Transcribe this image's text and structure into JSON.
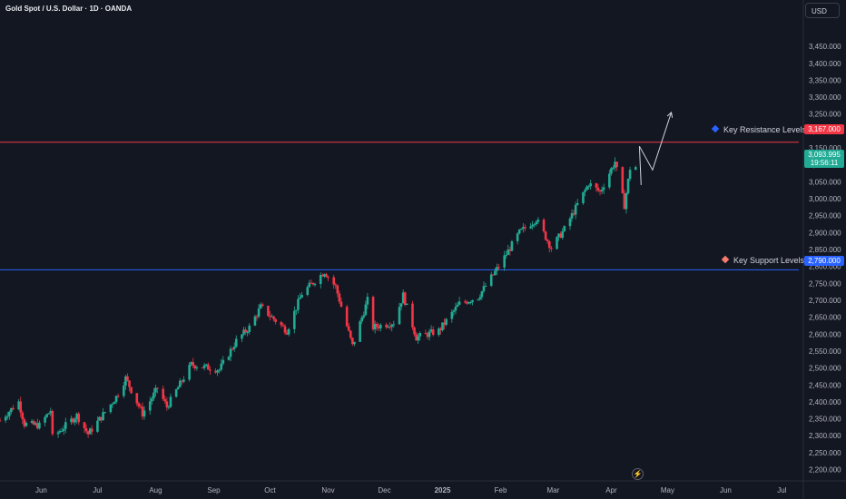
{
  "header": {
    "title": "Gold Spot / U.S. Dollar · 1D · OANDA",
    "currency": "USD"
  },
  "levels": {
    "resistance": {
      "label": "Key Resistance Levels:",
      "price": 3167,
      "price_label": "3,167.000",
      "color": "#f23645",
      "marker_color": "#2962ff"
    },
    "support": {
      "label": "Key Support Levels:",
      "price": 2790,
      "price_label": "2,790.000",
      "color": "#2962ff",
      "marker_color": "#f77c6b"
    }
  },
  "last_price": {
    "price": 3093.995,
    "label": "3,093.995",
    "countdown": "19:56:11",
    "color": "#22ab94"
  },
  "events": {
    "bolt_icon": "lightning-icon"
  },
  "chart_data": {
    "type": "candlestick",
    "title": "Gold Spot / U.S. Dollar · 1D · OANDA",
    "up_color": "#22ab94",
    "down_color": "#f23645",
    "y_axis": {
      "range": [
        2180,
        3520
      ],
      "ticks": [
        3450,
        3400,
        3350,
        3300,
        3250,
        3200,
        3150,
        3100,
        3050,
        3000,
        2950,
        2900,
        2850,
        2800,
        2750,
        2700,
        2650,
        2600,
        2550,
        2500,
        2450,
        2400,
        2350,
        2300,
        2250,
        2200
      ],
      "tick_labels": [
        "3,450.000",
        "3,400.000",
        "3,350.000",
        "3,300.000",
        "3,250.000",
        "3,200.000",
        "3,150.000",
        "3,100.000",
        "3,050.000",
        "3,000.000",
        "2,950.000",
        "2,900.000",
        "2,850.000",
        "2,800.000",
        "2,750.000",
        "2,700.000",
        "2,650.000",
        "2,600.000",
        "2,550.000",
        "2,500.000",
        "2,450.000",
        "2,400.000",
        "2,350.000",
        "2,300.000",
        "2,250.000",
        "2,200.000"
      ]
    },
    "x_axis": {
      "range": [
        "2024-05-10",
        "2025-07-10"
      ],
      "ticks": [
        {
          "date": "2024-06-01",
          "label": "Jun",
          "bold": false
        },
        {
          "date": "2024-07-01",
          "label": "Jul",
          "bold": false
        },
        {
          "date": "2024-08-01",
          "label": "Aug",
          "bold": false
        },
        {
          "date": "2024-09-01",
          "label": "Sep",
          "bold": false
        },
        {
          "date": "2024-10-01",
          "label": "Oct",
          "bold": false
        },
        {
          "date": "2024-11-01",
          "label": "Nov",
          "bold": false
        },
        {
          "date": "2024-12-01",
          "label": "Dec",
          "bold": false
        },
        {
          "date": "2025-01-01",
          "label": "2025",
          "bold": true
        },
        {
          "date": "2025-02-01",
          "label": "Feb",
          "bold": false
        },
        {
          "date": "2025-03-01",
          "label": "Mar",
          "bold": false
        },
        {
          "date": "2025-04-01",
          "label": "Apr",
          "bold": false
        },
        {
          "date": "2025-05-01",
          "label": "May",
          "bold": false
        },
        {
          "date": "2025-06-01",
          "label": "Jun",
          "bold": false
        },
        {
          "date": "2025-07-01",
          "label": "Jul",
          "bold": false
        }
      ]
    },
    "close_path": [
      [
        "2024-05-10",
        2345
      ],
      [
        "2024-05-20",
        2400
      ],
      [
        "2024-05-23",
        2335
      ],
      [
        "2024-05-31",
        2330
      ],
      [
        "2024-06-06",
        2375
      ],
      [
        "2024-06-07",
        2295
      ],
      [
        "2024-06-14",
        2330
      ],
      [
        "2024-06-20",
        2360
      ],
      [
        "2024-06-26",
        2305
      ],
      [
        "2024-07-03",
        2355
      ],
      [
        "2024-07-11",
        2415
      ],
      [
        "2024-07-16",
        2470
      ],
      [
        "2024-07-25",
        2365
      ],
      [
        "2024-08-02",
        2440
      ],
      [
        "2024-08-07",
        2385
      ],
      [
        "2024-08-20",
        2510
      ],
      [
        "2024-08-30",
        2500
      ],
      [
        "2024-09-04",
        2495
      ],
      [
        "2024-09-13",
        2580
      ],
      [
        "2024-09-20",
        2620
      ],
      [
        "2024-09-26",
        2680
      ],
      [
        "2024-10-10",
        2610
      ],
      [
        "2024-10-18",
        2720
      ],
      [
        "2024-10-30",
        2785
      ],
      [
        "2024-11-05",
        2740
      ],
      [
        "2024-11-14",
        2565
      ],
      [
        "2024-11-22",
        2700
      ],
      [
        "2024-11-25",
        2620
      ],
      [
        "2024-12-06",
        2635
      ],
      [
        "2024-12-11",
        2715
      ],
      [
        "2024-12-18",
        2590
      ],
      [
        "2024-12-30",
        2610
      ],
      [
        "2025-01-10",
        2690
      ],
      [
        "2025-01-20",
        2710
      ],
      [
        "2025-01-31",
        2800
      ],
      [
        "2025-02-11",
        2900
      ],
      [
        "2025-02-20",
        2940
      ],
      [
        "2025-02-28",
        2855
      ],
      [
        "2025-03-07",
        2910
      ],
      [
        "2025-03-20",
        3045
      ],
      [
        "2025-03-26",
        3020
      ],
      [
        "2025-04-03",
        3110
      ],
      [
        "2025-04-08",
        2980
      ],
      [
        "2025-04-11",
        3090
      ],
      [
        "2025-04-14",
        3094
      ]
    ],
    "projection": [
      [
        "2025-04-16",
        3155
      ],
      [
        "2025-04-23",
        3085
      ],
      [
        "2025-05-03",
        3255
      ]
    ],
    "grid": false,
    "legend": "none"
  }
}
